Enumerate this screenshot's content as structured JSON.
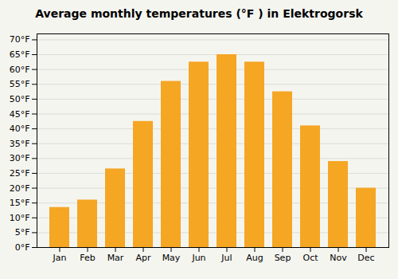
{
  "chart_data": {
    "type": "bar",
    "title": "Average monthly temperatures (°F ) in Elektrogorsk",
    "categories": [
      "Jan",
      "Feb",
      "Mar",
      "Apr",
      "May",
      "Jun",
      "Jul",
      "Aug",
      "Sep",
      "Oct",
      "Nov",
      "Dec"
    ],
    "values": [
      13.5,
      16.0,
      26.5,
      42.5,
      56.0,
      62.5,
      65.0,
      62.5,
      52.5,
      41.0,
      29.0,
      20.0
    ],
    "color": "#F5A623",
    "ylim": [
      0,
      72
    ],
    "yticks": [
      {
        "value": 0,
        "label": "0°F"
      },
      {
        "value": 5,
        "label": "5°F"
      },
      {
        "value": 10,
        "label": "10°F"
      },
      {
        "value": 15,
        "label": "15°F"
      },
      {
        "value": 20,
        "label": "20°F"
      },
      {
        "value": 25,
        "label": "25°F"
      },
      {
        "value": 30,
        "label": "30°F"
      },
      {
        "value": 35,
        "label": "35°F"
      },
      {
        "value": 40,
        "label": "40°F"
      },
      {
        "value": 45,
        "label": "45°F"
      },
      {
        "value": 50,
        "label": "50°F"
      },
      {
        "value": 55,
        "label": "55°F"
      },
      {
        "value": 60,
        "label": "60°F"
      },
      {
        "value": 65,
        "label": "65°F"
      },
      {
        "value": 70,
        "label": "70°F"
      }
    ],
    "grid": true
  }
}
